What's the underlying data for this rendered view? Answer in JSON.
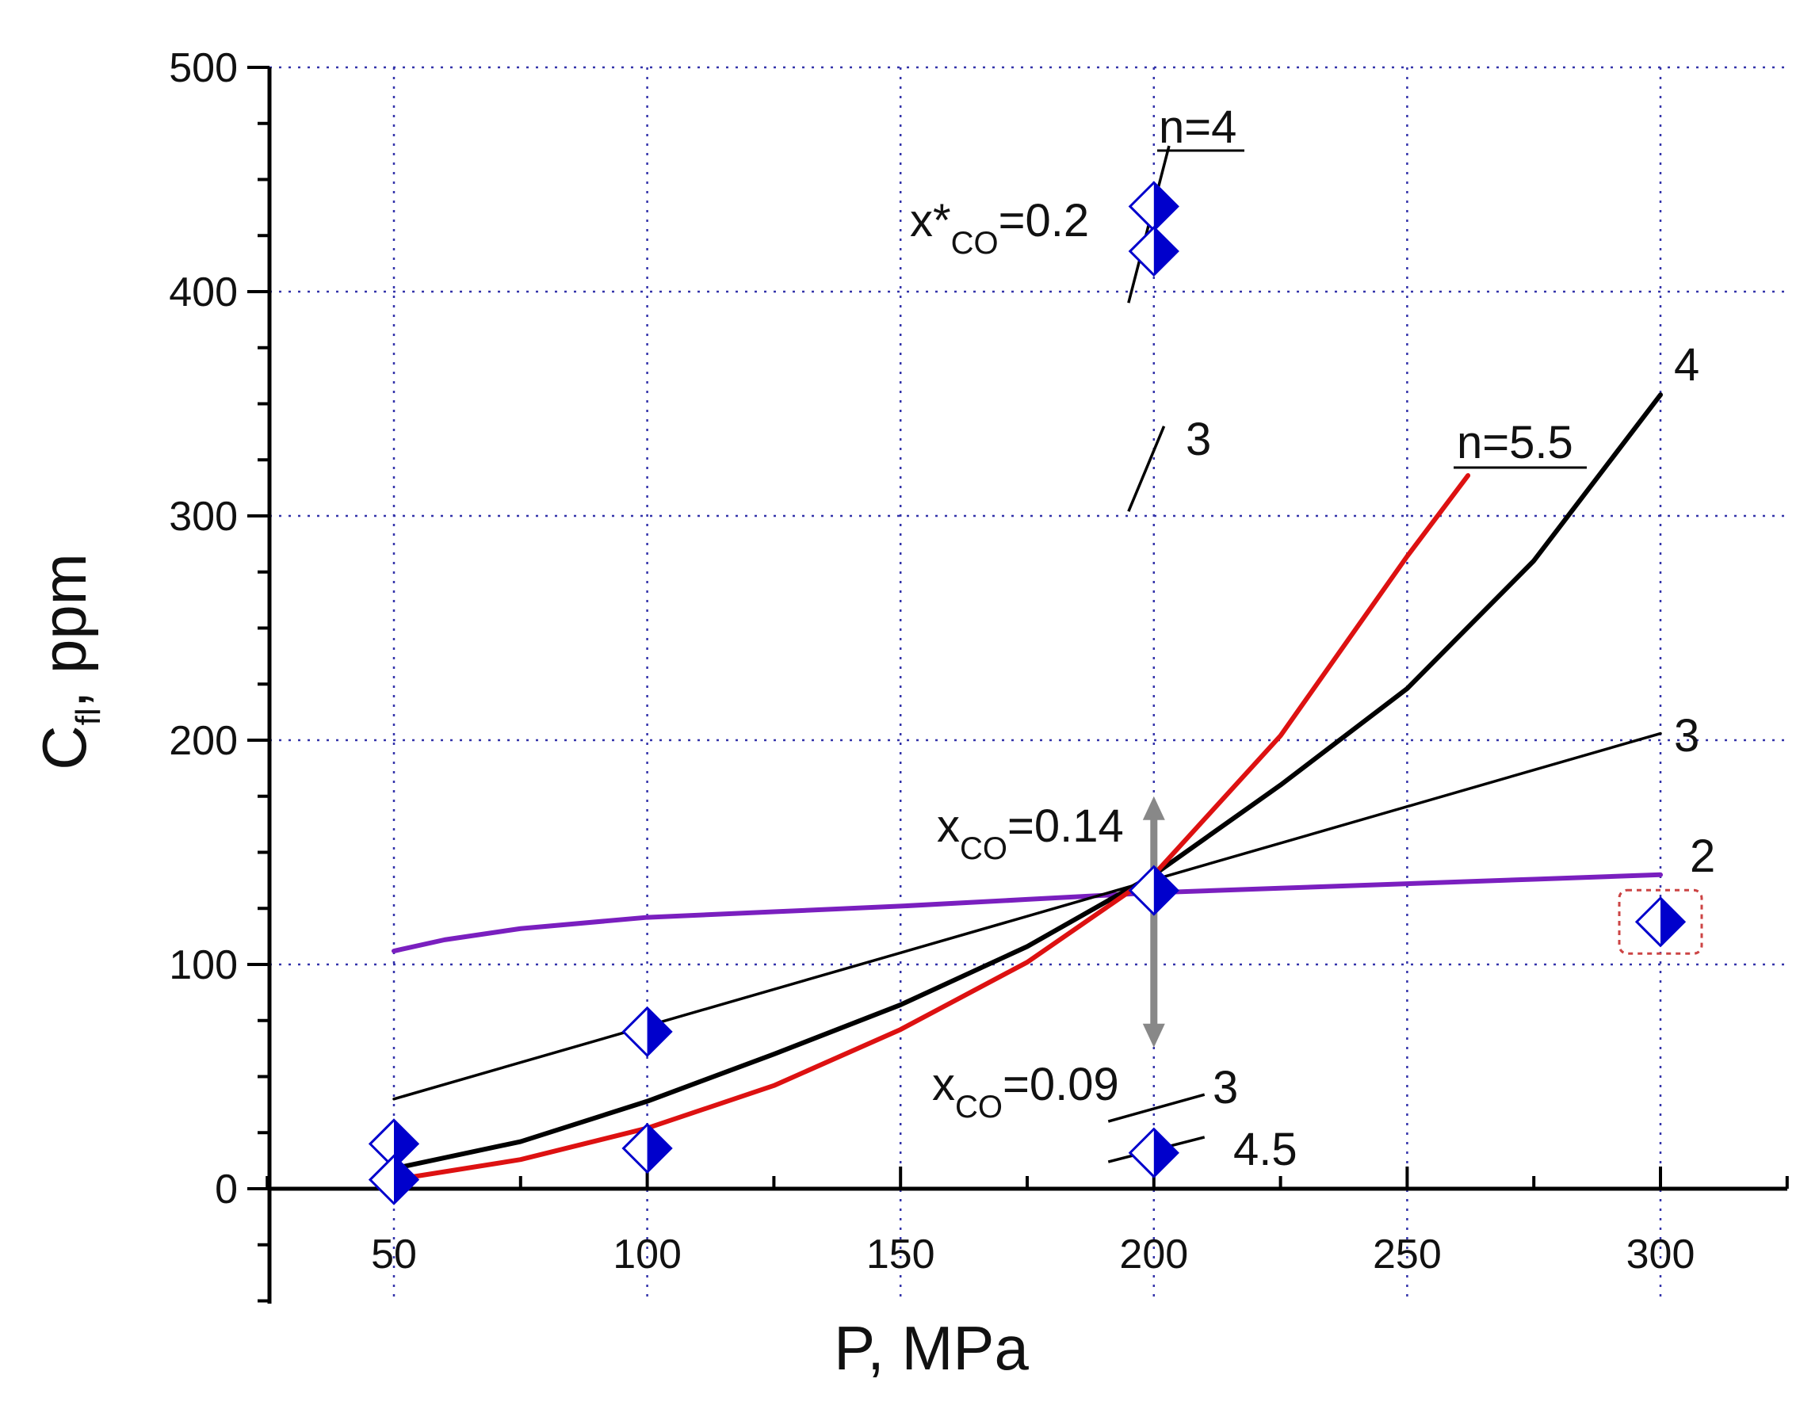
{
  "chart_data": {
    "type": "line",
    "title": "",
    "xlabel": "P, MPa",
    "ylabel_main": "C",
    "ylabel_sub": "fl",
    "ylabel_rest": ", ppm",
    "xlim": [
      25,
      325
    ],
    "ylim": [
      -50,
      500
    ],
    "xticks": [
      50,
      100,
      150,
      200,
      250,
      300
    ],
    "xtick_labels": [
      "50",
      "100",
      "150",
      "200",
      "250",
      "300"
    ],
    "yticks": [
      0,
      100,
      200,
      300,
      400,
      500
    ],
    "ytick_labels": [
      "0",
      "100",
      "200",
      "300",
      "400",
      "500"
    ],
    "grid": true,
    "grid_color": "#3333aa",
    "marker_color": "#0000cc",
    "series": [
      {
        "name": "n=2",
        "label": "2",
        "color": "#7a1fbf",
        "x": [
          50,
          60,
          75,
          100,
          125,
          150,
          175,
          200,
          225,
          250,
          275,
          300
        ],
        "values": [
          106,
          111,
          116,
          121,
          123.5,
          126,
          129,
          132,
          134,
          136,
          138,
          140
        ]
      },
      {
        "name": "n=3",
        "label": "3",
        "color": "#000000",
        "x": [
          50,
          300
        ],
        "values": [
          40,
          203
        ]
      },
      {
        "name": "n=4",
        "label": "4",
        "color": "#000000",
        "x": [
          50,
          75,
          100,
          125,
          150,
          175,
          200,
          225,
          250,
          275,
          300
        ],
        "values": [
          9,
          21,
          39,
          60,
          82,
          108,
          140,
          180,
          223,
          280,
          354
        ]
      },
      {
        "name": "n=5.5",
        "label": "n=5.5",
        "color": "#dd1111",
        "x": [
          50,
          75,
          100,
          125,
          150,
          175,
          200,
          225,
          250,
          262
        ],
        "values": [
          4,
          13,
          27,
          46,
          71,
          101,
          140,
          202,
          282,
          318
        ]
      }
    ],
    "short_lines": [
      {
        "label": "n=4",
        "x": [
          195,
          203
        ],
        "values": [
          395,
          465
        ]
      },
      {
        "label": "3",
        "x": [
          195,
          202
        ],
        "values": [
          302,
          340
        ]
      },
      {
        "label": "3",
        "x": [
          191,
          210
        ],
        "values": [
          30,
          42
        ]
      },
      {
        "label": "4.5",
        "x": [
          191,
          210
        ],
        "values": [
          12,
          23
        ]
      }
    ],
    "points": [
      {
        "x": 50,
        "y": 20
      },
      {
        "x": 50,
        "y": 4
      },
      {
        "x": 100,
        "y": 70
      },
      {
        "x": 100,
        "y": 18
      },
      {
        "x": 200,
        "y": 438
      },
      {
        "x": 200,
        "y": 418
      },
      {
        "x": 200,
        "y": 133
      },
      {
        "x": 200,
        "y": 16
      },
      {
        "x": 300,
        "y": 119
      }
    ],
    "arrow": {
      "x": 200,
      "y_from": 63,
      "y_to": 175,
      "color": "#888888"
    },
    "highlight_box": {
      "x": 300,
      "y": 119,
      "color": "#cc4444"
    },
    "annotations": {
      "x_star_main": "x*",
      "x_star_sub": "CO",
      "x_star_value": "=0.2",
      "x_014_main": "x",
      "x_014_sub": "CO",
      "x_014_value": "=0.14",
      "x_009_main": "x",
      "x_009_sub": "CO",
      "x_009_value": "=0.09",
      "n4_top": "n=4",
      "three_top": "3",
      "four_right": "4",
      "n55": "n=5.5",
      "three_right": "3",
      "two_right": "2",
      "three_low": "3",
      "four_five_low": "4.5"
    }
  }
}
